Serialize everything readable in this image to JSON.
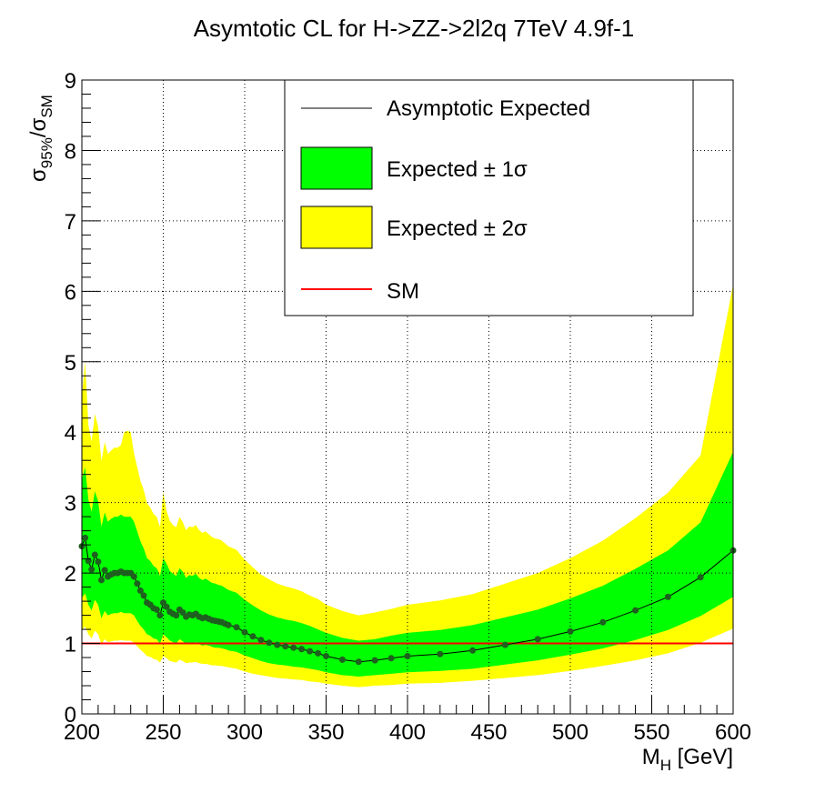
{
  "chart_data": {
    "type": "line",
    "title": "Asymtotic CL for H->ZZ->2l2q  7TeV  4.9f-1",
    "xlabel": {
      "main": "M",
      "sub": "H",
      "rest": " [GeV]"
    },
    "ylabel": {
      "a": "σ",
      "a_sub": "95%",
      "slash": "/σ",
      "b_sub": "SM"
    },
    "xlim": [
      200,
      600
    ],
    "ylim": [
      0,
      9
    ],
    "x_ticks": [
      "200",
      "250",
      "300",
      "350",
      "400",
      "450",
      "500",
      "550",
      "600"
    ],
    "y_ticks": [
      "0",
      "1",
      "2",
      "3",
      "4",
      "5",
      "6",
      "7",
      "8",
      "9"
    ],
    "grid": true,
    "legend_position": "top-right",
    "legend": {
      "expected": "Asymptotic Expected",
      "band1": "Expected ± 1σ",
      "band2": "Expected ± 2σ",
      "sm": "SM"
    },
    "colors": {
      "expected_line": "#000000",
      "expected_marker": "#1f5f1f",
      "band1": "#00ff00",
      "band2": "#ffff00",
      "sm": "#ff0000"
    },
    "sm_value": 1.0,
    "x": [
      200,
      202,
      204,
      206,
      208,
      210,
      212,
      214,
      216,
      218,
      220,
      222,
      224,
      226,
      228,
      230,
      232,
      234,
      236,
      238,
      240,
      242,
      244,
      246,
      248,
      250,
      252,
      254,
      256,
      258,
      260,
      262,
      264,
      266,
      268,
      270,
      272,
      274,
      276,
      278,
      280,
      282,
      284,
      286,
      288,
      290,
      295,
      300,
      305,
      310,
      315,
      320,
      325,
      330,
      335,
      340,
      345,
      350,
      360,
      370,
      380,
      390,
      400,
      420,
      440,
      460,
      480,
      500,
      520,
      540,
      560,
      580,
      600
    ],
    "expected": [
      2.38,
      2.5,
      2.17,
      2.05,
      2.26,
      2.16,
      1.9,
      2.04,
      1.95,
      1.98,
      2.0,
      2.0,
      2.02,
      2.0,
      2.0,
      2.0,
      1.95,
      1.85,
      1.75,
      1.68,
      1.58,
      1.55,
      1.5,
      1.48,
      1.4,
      1.58,
      1.52,
      1.45,
      1.42,
      1.4,
      1.48,
      1.44,
      1.38,
      1.41,
      1.4,
      1.42,
      1.38,
      1.36,
      1.37,
      1.35,
      1.33,
      1.32,
      1.31,
      1.3,
      1.28,
      1.26,
      1.23,
      1.16,
      1.1,
      1.05,
      1.01,
      0.98,
      0.96,
      0.94,
      0.92,
      0.89,
      0.86,
      0.82,
      0.77,
      0.74,
      0.76,
      0.79,
      0.82,
      0.85,
      0.9,
      0.98,
      1.06,
      1.17,
      1.3,
      1.47,
      1.66,
      1.94,
      2.32
    ],
    "band1_lo": [
      1.65,
      1.71,
      1.55,
      1.47,
      1.62,
      1.55,
      1.36,
      1.46,
      1.4,
      1.42,
      1.43,
      1.43,
      1.45,
      1.43,
      1.43,
      1.43,
      1.4,
      1.32,
      1.25,
      1.2,
      1.13,
      1.11,
      1.07,
      1.06,
      1.0,
      1.13,
      1.09,
      1.04,
      1.02,
      1.0,
      1.06,
      1.03,
      0.99,
      1.01,
      1.0,
      1.02,
      0.99,
      0.97,
      0.98,
      0.97,
      0.95,
      0.94,
      0.94,
      0.93,
      0.92,
      0.9,
      0.88,
      0.83,
      0.79,
      0.75,
      0.72,
      0.7,
      0.69,
      0.67,
      0.66,
      0.64,
      0.62,
      0.59,
      0.55,
      0.53,
      0.55,
      0.57,
      0.59,
      0.61,
      0.64,
      0.7,
      0.76,
      0.84,
      0.93,
      1.05,
      1.19,
      1.39,
      1.66
    ],
    "band1_hi": [
      3.33,
      3.5,
      3.04,
      2.87,
      3.16,
      3.02,
      2.66,
      2.86,
      2.73,
      2.77,
      2.8,
      2.8,
      2.83,
      2.8,
      2.8,
      2.8,
      2.73,
      2.59,
      2.45,
      2.35,
      2.21,
      2.17,
      2.1,
      2.07,
      1.96,
      2.21,
      2.13,
      2.03,
      1.99,
      1.96,
      2.07,
      2.02,
      1.93,
      1.97,
      1.96,
      1.99,
      1.93,
      1.9,
      1.92,
      1.89,
      1.86,
      1.85,
      1.83,
      1.82,
      1.79,
      1.76,
      1.72,
      1.62,
      1.54,
      1.47,
      1.41,
      1.37,
      1.34,
      1.32,
      1.29,
      1.25,
      1.2,
      1.15,
      1.08,
      1.04,
      1.06,
      1.11,
      1.15,
      1.19,
      1.26,
      1.37,
      1.48,
      1.64,
      1.82,
      2.06,
      2.32,
      2.72,
      3.72
    ],
    "band2_lo": [
      1.19,
      1.24,
      1.13,
      1.07,
      1.18,
      1.13,
      0.99,
      1.06,
      1.02,
      1.03,
      1.04,
      1.04,
      1.05,
      1.04,
      1.04,
      1.04,
      1.01,
      0.96,
      0.91,
      0.87,
      0.82,
      0.81,
      0.78,
      0.77,
      0.73,
      0.82,
      0.79,
      0.75,
      0.74,
      0.73,
      0.77,
      0.75,
      0.72,
      0.73,
      0.73,
      0.74,
      0.72,
      0.71,
      0.71,
      0.7,
      0.69,
      0.69,
      0.68,
      0.68,
      0.67,
      0.66,
      0.64,
      0.6,
      0.57,
      0.55,
      0.53,
      0.51,
      0.5,
      0.49,
      0.48,
      0.46,
      0.45,
      0.43,
      0.4,
      0.38,
      0.4,
      0.41,
      0.43,
      0.44,
      0.47,
      0.51,
      0.55,
      0.61,
      0.68,
      0.76,
      0.86,
      1.01,
      1.21
    ],
    "band2_hi": [
      4.5,
      5.0,
      4.1,
      3.87,
      4.26,
      4.08,
      3.59,
      3.86,
      3.69,
      3.74,
      3.78,
      3.78,
      3.82,
      4.0,
      4.02,
      4.0,
      3.7,
      3.5,
      3.31,
      3.18,
      2.99,
      2.93,
      2.84,
      2.8,
      2.65,
      3.15,
      2.88,
      2.74,
      2.68,
      2.65,
      2.8,
      2.72,
      2.61,
      2.66,
      2.65,
      2.68,
      2.61,
      2.57,
      2.59,
      2.55,
      2.51,
      2.49,
      2.48,
      2.46,
      2.42,
      2.38,
      2.33,
      2.19,
      2.08,
      1.98,
      1.91,
      1.85,
      1.81,
      1.78,
      1.74,
      1.68,
      1.63,
      1.55,
      1.46,
      1.4,
      1.44,
      1.49,
      1.55,
      1.61,
      1.7,
      1.85,
      2.0,
      2.21,
      2.46,
      2.78,
      3.14,
      3.67,
      6.1
    ]
  }
}
